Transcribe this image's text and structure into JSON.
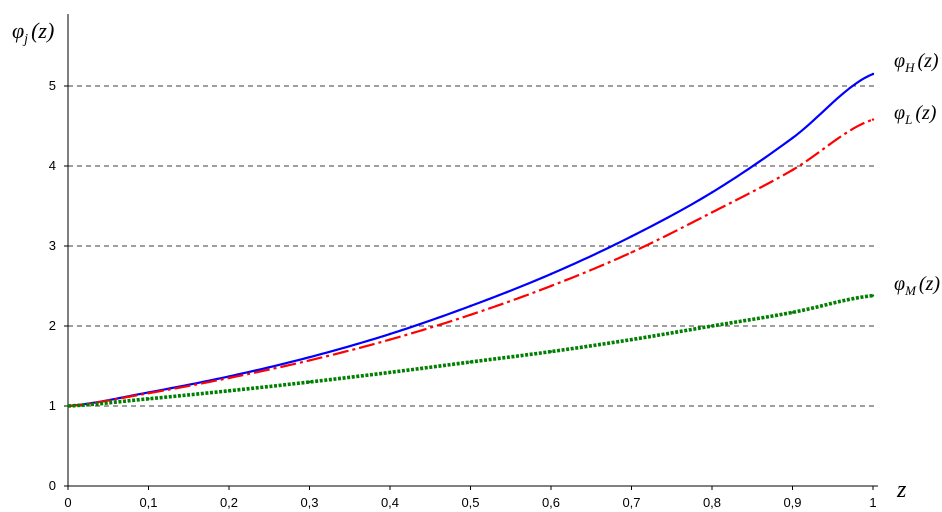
{
  "chart_data": {
    "type": "line",
    "title": "",
    "xlabel": "z",
    "ylabel": "φj(z)",
    "xlim": [
      0,
      1
    ],
    "ylim": [
      0,
      5.5
    ],
    "grid": "horizontal dashed",
    "x_ticks": [
      "0",
      "0,1",
      "0,2",
      "0,3",
      "0,4",
      "0,5",
      "0,6",
      "0,7",
      "0,8",
      "0,9",
      "1"
    ],
    "y_ticks": [
      "0",
      "1",
      "2",
      "3",
      "4",
      "5"
    ],
    "x": [
      0,
      0.1,
      0.2,
      0.3,
      0.4,
      0.5,
      0.6,
      0.7,
      0.8,
      0.9,
      1.0
    ],
    "series": [
      {
        "name": "φH(z)",
        "color": "#0000ff",
        "style": "solid",
        "values": [
          1.0,
          1.17,
          1.37,
          1.61,
          1.9,
          2.25,
          2.65,
          3.12,
          3.67,
          4.35,
          5.15
        ]
      },
      {
        "name": "φL(z)",
        "color": "#ff0000",
        "style": "dash-dot",
        "values": [
          1.0,
          1.16,
          1.35,
          1.57,
          1.83,
          2.14,
          2.5,
          2.92,
          3.42,
          3.95,
          4.58
        ]
      },
      {
        "name": "φM(z)",
        "color": "#008000",
        "style": "dotted-diamond",
        "values": [
          1.0,
          1.09,
          1.19,
          1.3,
          1.42,
          1.55,
          1.68,
          1.83,
          2.0,
          2.17,
          2.38
        ]
      }
    ]
  }
}
